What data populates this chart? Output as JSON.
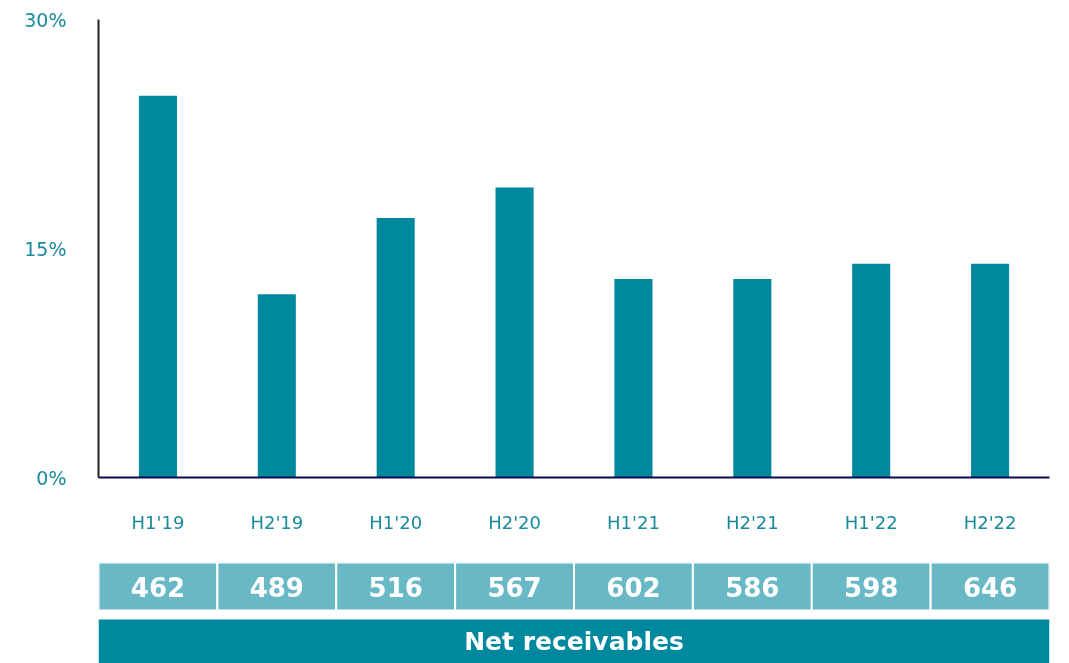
{
  "chart_data": [
    {
      "type": "bar",
      "categories": [
        "H1'19",
        "H2'19",
        "H1'20",
        "H2'20",
        "H1'21",
        "H2'21",
        "H1'22",
        "H2'22"
      ],
      "values": [
        25,
        12,
        17,
        19,
        13,
        13,
        14,
        14
      ],
      "color": "#00889e",
      "ylim": [
        0,
        30
      ],
      "yticks": [
        {
          "value": 0,
          "label": "0%"
        },
        {
          "value": 15,
          "label": "15%"
        },
        {
          "value": 30,
          "label": "30%"
        }
      ]
    },
    {
      "type": "other",
      "title": "Net receivables",
      "values": [
        462,
        489,
        516,
        567,
        602,
        586,
        598,
        646
      ],
      "color": "#68b8c5",
      "data_labels": true
    }
  ]
}
